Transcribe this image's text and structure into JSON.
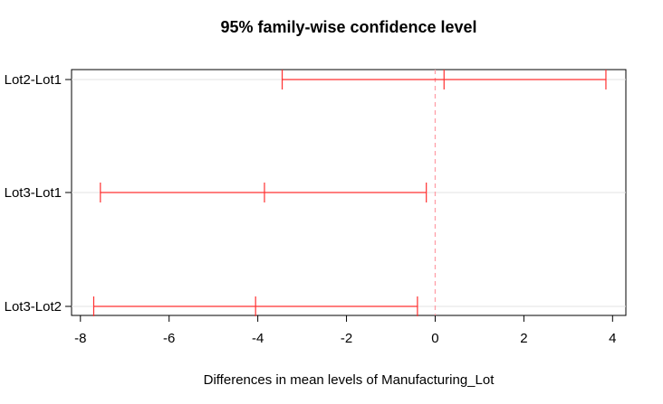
{
  "chart_data": {
    "type": "interval",
    "title": "95% family-wise confidence level",
    "xlabel": "Differences in mean levels of Manufacturing_Lot",
    "ylabel": "",
    "xlim": [
      -8.2,
      4.3
    ],
    "xticks": [
      -8,
      -6,
      -4,
      -2,
      0,
      2,
      4
    ],
    "xtick_labels": [
      "-8",
      "-6",
      "-4",
      "-2",
      "0",
      "2",
      "4"
    ],
    "reference_line": 0,
    "grid": "horizontal",
    "series_color": "#ff3030",
    "reference_color": "#ff9fa8",
    "comparisons": [
      {
        "label": "Lot2-Lot1",
        "lower": -3.45,
        "estimate": 0.2,
        "upper": 3.85
      },
      {
        "label": "Lot3-Lot1",
        "lower": -7.55,
        "estimate": -3.85,
        "upper": -0.2
      },
      {
        "label": "Lot3-Lot2",
        "lower": -7.7,
        "estimate": -4.05,
        "upper": -0.4
      }
    ]
  }
}
